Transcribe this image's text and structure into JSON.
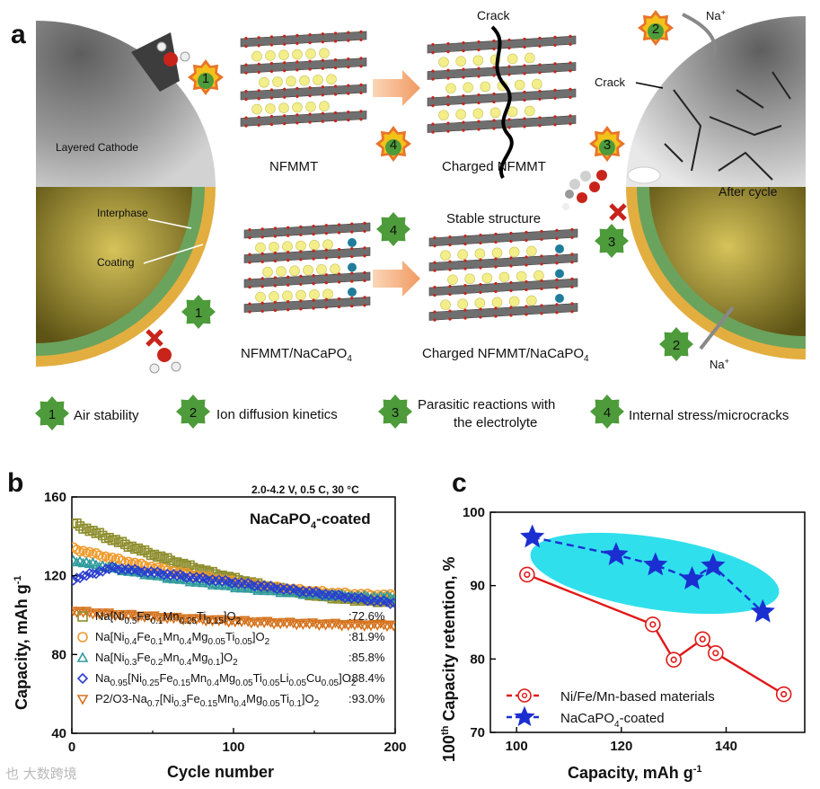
{
  "panel_a": {
    "label": "a",
    "text_layered_cathode": "Layered Cathode",
    "text_interphase": "Interphase",
    "text_coating": "Coating",
    "text_nfmmt": "NFMMT",
    "text_charged_nfmmt": "Charged NFMMT",
    "text_crack_top": "Crack",
    "text_crack_right": "Crack",
    "text_after_cycle": "After cycle",
    "text_stable_structure": "Stable structure",
    "text_nfmmt_coated": "NFMMT/NaCaPO",
    "text_charged_coated": "Charged NFMMT/NaCaPO",
    "sub_4": "4",
    "text_na_top": "Na",
    "text_na_bottom": "Na",
    "sup_plus": "+",
    "badges": [
      "1",
      "2",
      "3",
      "4"
    ],
    "legend": [
      {
        "num": "1",
        "label": "Air stability"
      },
      {
        "num": "2",
        "label": "Ion diffusion kinetics"
      },
      {
        "num": "3",
        "label_line1": "Parasitic reactions with",
        "label_line2": "the electrolyte"
      },
      {
        "num": "4",
        "label": "Internal stress/microcracks"
      }
    ],
    "colors": {
      "badge_outer": "#e8742a",
      "badge_inner": "#f2c21b",
      "badge_green": "#4d9b3a",
      "coating": "#e3ae40",
      "interphase": "#6aa35d",
      "sodium": "#f3ee8a",
      "calcium": "#1f7d9a",
      "oxygen": "#c8241b"
    }
  },
  "chart_data": [
    {
      "type": "scatter",
      "panel": "b",
      "annotation_conditions": "2.0-4.2 V, 0.5 C, 30 °C",
      "annotation_title": "NaCaPO",
      "annotation_title_sub": "4",
      "annotation_title_suffix": "-coated",
      "xlabel": "Cycle number",
      "ylabel": "Capacity, mAh g",
      "ylabel_sup": "-1",
      "xlim": [
        0,
        200
      ],
      "ylim": [
        40,
        160
      ],
      "x_ticks": [
        0,
        100,
        200
      ],
      "y_ticks": [
        40,
        80,
        120,
        160
      ],
      "series": [
        {
          "legend_html": "Na[Ni<tspan dy='4' font-size='10'>0.5</tspan><tspan dy='-4'>Fe</tspan><tspan dy='4' font-size='10'>0.1</tspan><tspan dy='-4'>Mn</tspan><tspan dy='4' font-size='10'>0.25</tspan><tspan dy='-4'>Ti</tspan><tspan dy='4' font-size='10'>0.15</tspan><tspan dy='-4'>]O</tspan><tspan dy='4' font-size='10'>2</tspan>",
          "retention": ":72.6%",
          "color": "#8e8e2e",
          "marker": "square",
          "start": 147,
          "end": 107,
          "peak_at": 0
        },
        {
          "legend_html": "Na[Ni<tspan dy='4' font-size='10'>0.4</tspan><tspan dy='-4'>Fe</tspan><tspan dy='4' font-size='10'>0.1</tspan><tspan dy='-4'>Mn</tspan><tspan dy='4' font-size='10'>0.4</tspan><tspan dy='-4'>Mg</tspan><tspan dy='4' font-size='10'>0.05</tspan><tspan dy='-4'>Ti</tspan><tspan dy='4' font-size='10'>0.05</tspan><tspan dy='-4'>]O</tspan><tspan dy='4' font-size='10'>2</tspan>",
          "retention": ":81.9%",
          "color": "#ef9a2b",
          "marker": "circle",
          "start": 134,
          "end": 110,
          "peak_at": 0
        },
        {
          "legend_html": "Na[Ni<tspan dy='4' font-size='10'>0.3</tspan><tspan dy='-4'>Fe</tspan><tspan dy='4' font-size='10'>0.2</tspan><tspan dy='-4'>Mn</tspan><tspan dy='4' font-size='10'>0.4</tspan><tspan dy='-4'>Mg</tspan><tspan dy='4' font-size='10'>0.1</tspan><tspan dy='-4'>]O</tspan><tspan dy='4' font-size='10'>2</tspan>",
          "retention": ":85.8%",
          "color": "#2e9a9c",
          "marker": "triangle-up",
          "start": 128,
          "end": 109,
          "peak_at": 0
        },
        {
          "legend_html": "Na<tspan dy='4' font-size='10'>0.95</tspan><tspan dy='-4'>[Ni</tspan><tspan dy='4' font-size='10'>0.25</tspan><tspan dy='-4'>Fe</tspan><tspan dy='4' font-size='10'>0.15</tspan><tspan dy='-4'>Mn</tspan><tspan dy='4' font-size='10'>0.4</tspan><tspan dy='-4'>Mg</tspan><tspan dy='4' font-size='10'>0.05</tspan><tspan dy='-4'>Ti</tspan><tspan dy='4' font-size='10'>0.05</tspan><tspan dy='-4'>Li</tspan><tspan dy='4' font-size='10'>0.05</tspan><tspan dy='-4'>Cu</tspan><tspan dy='4' font-size='10'>0.05</tspan><tspan dy='-4'>]O</tspan><tspan dy='4' font-size='10'>2</tspan>",
          "retention": ":88.4%",
          "color": "#2b3ecf",
          "marker": "diamond",
          "start": 118,
          "peak": 124,
          "end": 106,
          "peak_at": 25
        },
        {
          "legend_html": "P2/O3-Na<tspan dy='4' font-size='10'>0.7</tspan><tspan dy='-4'>[Ni</tspan><tspan dy='4' font-size='10'>0.3</tspan><tspan dy='-4'>Fe</tspan><tspan dy='4' font-size='10'>0.15</tspan><tspan dy='-4'>Mn</tspan><tspan dy='4' font-size='10'>0.4</tspan><tspan dy='-4'>Mg</tspan><tspan dy='4' font-size='10'>0.05</tspan><tspan dy='-4'>Ti</tspan><tspan dy='4' font-size='10'>0.1</tspan><tspan dy='-4'>]O</tspan><tspan dy='4' font-size='10'>2</tspan>",
          "retention": ":93.0%",
          "color": "#d5731e",
          "marker": "triangle-down",
          "start": 102,
          "end": 95,
          "peak_at": 0
        }
      ]
    },
    {
      "type": "line",
      "panel": "c",
      "xlabel": "Capacity, mAh g",
      "xlabel_sup": "-1",
      "ylabel_pre": "100",
      "ylabel_sup": "th",
      "ylabel_post": " Capacity retention, %",
      "xlim": [
        95,
        155
      ],
      "ylim": [
        70,
        100
      ],
      "x_ticks": [
        100,
        120,
        140
      ],
      "y_ticks": [
        70,
        80,
        90,
        100
      ],
      "legend_placement": "bottom-left",
      "series": [
        {
          "name": "Ni/Fe/Mn-based materials",
          "color": "#e01919",
          "marker": "circle",
          "linestyle": "solid",
          "x": [
            102,
            126,
            130,
            135.5,
            138,
            151
          ],
          "y": [
            91.5,
            84.7,
            79.9,
            82.7,
            80.8,
            75.2
          ]
        },
        {
          "name": "NaCaPO",
          "name_sub": "4",
          "name_suffix": "-coated",
          "color": "#1b2fd1",
          "marker": "star",
          "linestyle": "dashed",
          "x": [
            103,
            119,
            126.5,
            133.5,
            137.5,
            147
          ],
          "y": [
            96.6,
            94.2,
            92.8,
            90.9,
            92.7,
            86.4
          ]
        }
      ],
      "highlight_color": "#2fe0ec"
    }
  ],
  "watermark": "也 大数跨境"
}
